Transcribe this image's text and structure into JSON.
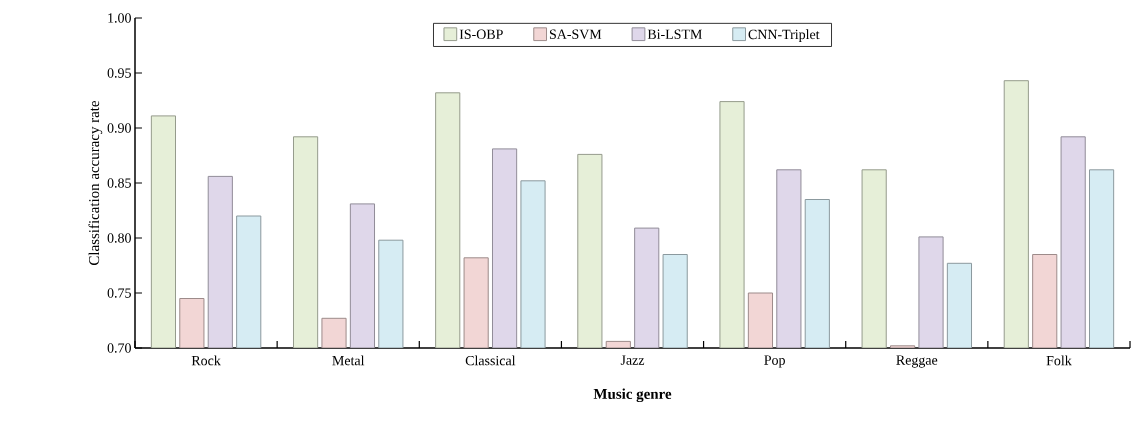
{
  "chart_data": {
    "type": "bar",
    "xlabel": "Music genre",
    "ylabel": "Classification accuracy rate",
    "categories": [
      "Rock",
      "Metal",
      "Classical",
      "Jazz",
      "Pop",
      "Reggae",
      "Folk"
    ],
    "series": [
      {
        "name": "IS-OBP",
        "color": "#e6efd8",
        "values": [
          0.911,
          0.892,
          0.932,
          0.876,
          0.924,
          0.862,
          0.943
        ]
      },
      {
        "name": "SA-SVM",
        "color": "#f2d6d5",
        "values": [
          0.745,
          0.727,
          0.782,
          0.706,
          0.75,
          0.702,
          0.785
        ]
      },
      {
        "name": "Bi-LSTM",
        "color": "#dfd7ea",
        "values": [
          0.856,
          0.831,
          0.881,
          0.809,
          0.862,
          0.801,
          0.892
        ]
      },
      {
        "name": "CNN-Triplet",
        "color": "#d6ecf3",
        "values": [
          0.82,
          0.798,
          0.852,
          0.785,
          0.835,
          0.777,
          0.862
        ]
      }
    ],
    "ylim": [
      0.7,
      1.0
    ],
    "yticks": [
      {
        "value": 0.7,
        "label": "0.70"
      },
      {
        "value": 0.75,
        "label": "0.75"
      },
      {
        "value": 0.8,
        "label": "0.80"
      },
      {
        "value": 0.85,
        "label": "0.85"
      },
      {
        "value": 0.9,
        "label": "0.90"
      },
      {
        "value": 0.95,
        "label": "0.95"
      },
      {
        "value": 1.0,
        "label": "1.00"
      }
    ],
    "grid": false,
    "legend": "top"
  }
}
